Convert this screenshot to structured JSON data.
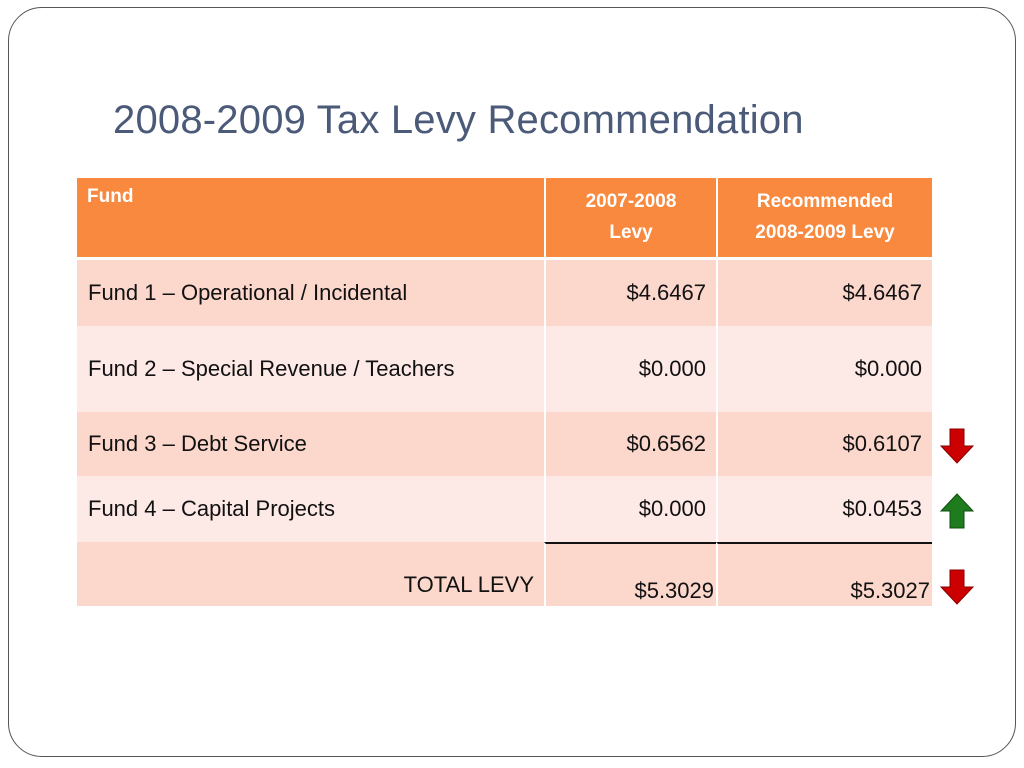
{
  "slide": {
    "title": "2008-2009 Tax Levy Recommendation"
  },
  "table": {
    "headers": {
      "fund": "Fund",
      "prev_line1": "2007-2008",
      "prev_line2": "Levy",
      "rec_line1": "Recommended",
      "rec_line2": "2008-2009 Levy"
    },
    "rows": [
      {
        "fund": "Fund 1 – Operational / Incidental",
        "levy_2007_2008": "$4.6467",
        "levy_2008_2009": "$4.6467",
        "trend": "none"
      },
      {
        "fund": "Fund 2 – Special Revenue / Teachers",
        "levy_2007_2008": "$0.000",
        "levy_2008_2009": "$0.000",
        "trend": "none"
      },
      {
        "fund": "Fund 3 – Debt Service",
        "levy_2007_2008": "$0.6562",
        "levy_2008_2009": "$0.6107",
        "trend": "down"
      },
      {
        "fund": "Fund 4 – Capital Projects",
        "levy_2007_2008": "$0.000",
        "levy_2008_2009": "$0.0453",
        "trend": "up"
      }
    ],
    "total": {
      "label": "TOTAL LEVY",
      "levy_2007_2008": "$5.3029",
      "levy_2008_2009": "$5.3027",
      "trend": "down"
    }
  },
  "colors": {
    "header_bg": "#f8893f",
    "row_dark": "#fcd7cc",
    "row_light": "#fde9e6",
    "title_text": "#4a5a78",
    "down_arrow": "#cc0000",
    "up_arrow": "#1e7b1e"
  },
  "icons": {
    "down": "arrow-down-icon",
    "up": "arrow-up-icon"
  }
}
